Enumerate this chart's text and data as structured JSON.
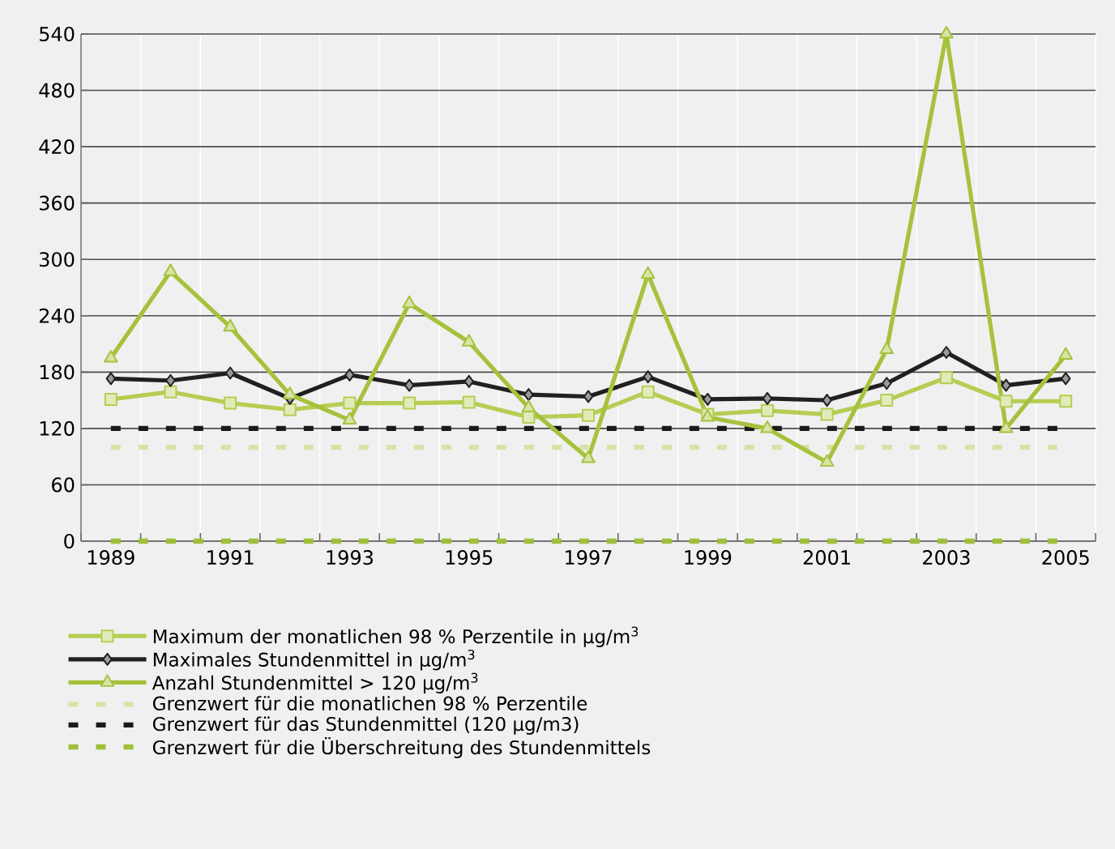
{
  "chart_data": {
    "type": "line",
    "categories": [
      "1989",
      null,
      "1991",
      null,
      "1993",
      null,
      "1995",
      null,
      "1997",
      null,
      "1999",
      null,
      "2001",
      null,
      "2003",
      null,
      "2005"
    ],
    "series": [
      {
        "name": "Maximum der monatlichen 98 % Perzentile in µg/m$^{3}$",
        "color": "#b5cd52",
        "marker": "square",
        "values": [
          151,
          159,
          147,
          140,
          147,
          147,
          148,
          132,
          134,
          159,
          135,
          139,
          135,
          150,
          174,
          149,
          149
        ]
      },
      {
        "name": "Maximales Stundenmittel in µg/m$^{3}$",
        "color": "#231f20",
        "marker": "diamond",
        "values": [
          173,
          171,
          179,
          152,
          177,
          166,
          170,
          156,
          154,
          175,
          151,
          152,
          150,
          168,
          201,
          166,
          173
        ]
      },
      {
        "name": "Anzahl Stundenmittel > 120 µg/m$^{3}$",
        "color": "#a6c23c",
        "marker": "triangle",
        "values": [
          195,
          287,
          228,
          156,
          129,
          253,
          212,
          142,
          88,
          284,
          132,
          120,
          84,
          204,
          540,
          120,
          198
        ]
      }
    ],
    "ylim": [
      0,
      540
    ],
    "yticks": [
      0,
      60,
      120,
      180,
      240,
      300,
      360,
      420,
      480,
      540
    ],
    "grid": true,
    "legend": "bottom",
    "ref_lines": [
      {
        "axis": "y",
        "value": 100,
        "label": "Grenzwert für die monatlichen 98 % Perzentile",
        "color": "#d6e3a6",
        "line_style": "dashed"
      },
      {
        "axis": "y",
        "value": 120,
        "label": "Grenzwert für das Stundenmittel (120 µg/m3)",
        "color": "#1a1a1a",
        "line_style": "dashed"
      },
      {
        "axis": "y",
        "value": 0,
        "label": "Grenzwert für die Überschreitung des Stundenmittels",
        "color": "#9fbf3b",
        "line_style": "dashed"
      }
    ]
  }
}
